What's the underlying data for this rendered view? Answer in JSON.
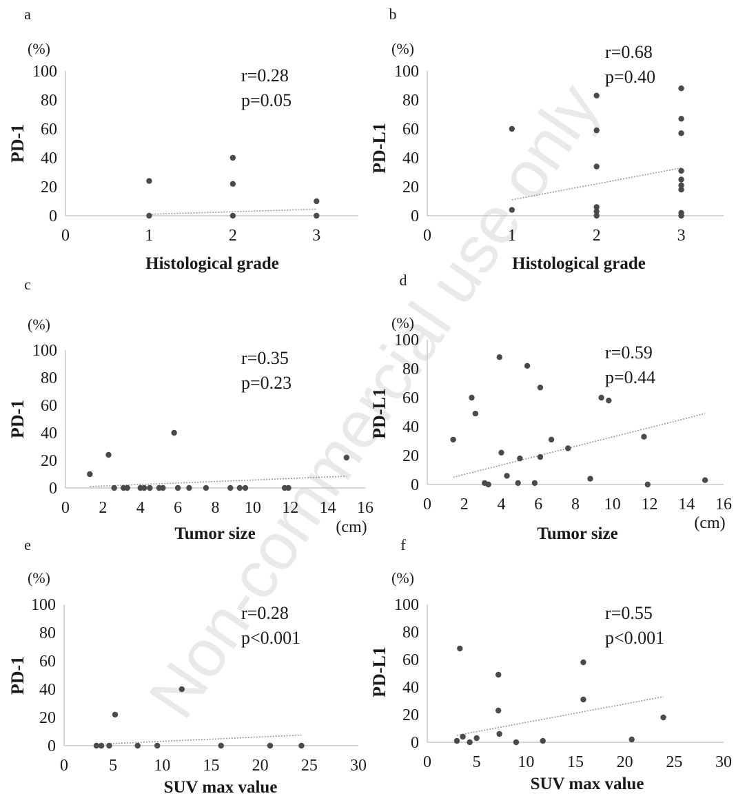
{
  "watermark": "Non-commercial use only",
  "chart_data": [
    {
      "type": "scatter",
      "panel": "a",
      "y_unit": "(%)",
      "ylabel": "PD-1",
      "xlabel": "Histological grade",
      "x_unit": "",
      "xlim": [
        0,
        3.5
      ],
      "ylim": [
        0,
        100
      ],
      "x_ticks": [
        0,
        1,
        2,
        3
      ],
      "y_ticks": [
        0,
        20,
        40,
        60,
        80,
        100
      ],
      "stats": {
        "r": "r=0.28",
        "p": "p=0.05"
      },
      "points": [
        {
          "x": 1,
          "y": 24
        },
        {
          "x": 1,
          "y": 0
        },
        {
          "x": 2,
          "y": 40
        },
        {
          "x": 2,
          "y": 22
        },
        {
          "x": 2,
          "y": 0
        },
        {
          "x": 3,
          "y": 10
        },
        {
          "x": 3,
          "y": 0
        }
      ],
      "trendline": [
        {
          "x": 1,
          "y": 1
        },
        {
          "x": 3,
          "y": 4.5
        }
      ]
    },
    {
      "type": "scatter",
      "panel": "b",
      "y_unit": "(%)",
      "ylabel": "PD-L1",
      "xlabel": "Histological grade",
      "x_unit": "",
      "xlim": [
        0,
        3.5
      ],
      "ylim": [
        0,
        100
      ],
      "x_ticks": [
        0,
        1,
        2,
        3
      ],
      "y_ticks": [
        0,
        20,
        40,
        60,
        80,
        100
      ],
      "stats": {
        "r": "r=0.68",
        "p": "p=0.40"
      },
      "points": [
        {
          "x": 1,
          "y": 60
        },
        {
          "x": 1,
          "y": 4
        },
        {
          "x": 2,
          "y": 83
        },
        {
          "x": 2,
          "y": 59
        },
        {
          "x": 2,
          "y": 34
        },
        {
          "x": 2,
          "y": 6
        },
        {
          "x": 2,
          "y": 3
        },
        {
          "x": 2,
          "y": 0
        },
        {
          "x": 3,
          "y": 88
        },
        {
          "x": 3,
          "y": 67
        },
        {
          "x": 3,
          "y": 57
        },
        {
          "x": 3,
          "y": 31
        },
        {
          "x": 3,
          "y": 25
        },
        {
          "x": 3,
          "y": 21
        },
        {
          "x": 3,
          "y": 18
        },
        {
          "x": 3,
          "y": 2
        },
        {
          "x": 3,
          "y": 0
        }
      ],
      "trendline": [
        {
          "x": 1,
          "y": 11
        },
        {
          "x": 3,
          "y": 33
        }
      ]
    },
    {
      "type": "scatter",
      "panel": "c",
      "y_unit": "(%)",
      "ylabel": "PD-1",
      "xlabel": "Tumor size",
      "x_unit": "(cm)",
      "xlim": [
        0,
        16
      ],
      "ylim": [
        0,
        100
      ],
      "x_ticks": [
        0,
        2,
        4,
        6,
        8,
        10,
        12,
        14,
        16
      ],
      "y_ticks": [
        0,
        20,
        40,
        60,
        80,
        100
      ],
      "stats": {
        "r": "r=0.35",
        "p": "p=0.23"
      },
      "points": [
        {
          "x": 1.3,
          "y": 10
        },
        {
          "x": 2.3,
          "y": 24
        },
        {
          "x": 5.8,
          "y": 40
        },
        {
          "x": 15.0,
          "y": 22
        },
        {
          "x": 2.6,
          "y": 0
        },
        {
          "x": 3.1,
          "y": 0
        },
        {
          "x": 3.3,
          "y": 0
        },
        {
          "x": 4.0,
          "y": 0
        },
        {
          "x": 4.2,
          "y": 0
        },
        {
          "x": 4.5,
          "y": 0
        },
        {
          "x": 5.0,
          "y": 0
        },
        {
          "x": 5.2,
          "y": 0
        },
        {
          "x": 6.0,
          "y": 0
        },
        {
          "x": 6.6,
          "y": 0
        },
        {
          "x": 7.5,
          "y": 0
        },
        {
          "x": 8.8,
          "y": 0
        },
        {
          "x": 9.3,
          "y": 0
        },
        {
          "x": 9.6,
          "y": 0
        },
        {
          "x": 11.7,
          "y": 0
        },
        {
          "x": 11.9,
          "y": 0
        }
      ],
      "trendline": [
        {
          "x": 1.3,
          "y": 1
        },
        {
          "x": 15.0,
          "y": 8.5
        }
      ]
    },
    {
      "type": "scatter",
      "panel": "d",
      "y_unit": "(%)",
      "ylabel": "PD-L1",
      "xlabel": "Tumor size",
      "x_unit": "(cm)",
      "xlim": [
        0,
        16
      ],
      "ylim": [
        0,
        100
      ],
      "x_ticks": [
        0,
        2,
        4,
        6,
        8,
        10,
        12,
        14,
        16
      ],
      "y_ticks": [
        0,
        20,
        40,
        60,
        80,
        100
      ],
      "stats": {
        "r": "r=0.59",
        "p": "p=0.44"
      },
      "points": [
        {
          "x": 1.4,
          "y": 31
        },
        {
          "x": 2.4,
          "y": 60
        },
        {
          "x": 2.6,
          "y": 49
        },
        {
          "x": 3.1,
          "y": 1
        },
        {
          "x": 3.3,
          "y": 0
        },
        {
          "x": 3.9,
          "y": 88
        },
        {
          "x": 4.0,
          "y": 22
        },
        {
          "x": 4.3,
          "y": 6
        },
        {
          "x": 4.9,
          "y": 1
        },
        {
          "x": 5.0,
          "y": 18
        },
        {
          "x": 5.4,
          "y": 82
        },
        {
          "x": 5.8,
          "y": 1
        },
        {
          "x": 6.1,
          "y": 67
        },
        {
          "x": 6.1,
          "y": 19
        },
        {
          "x": 6.7,
          "y": 31
        },
        {
          "x": 7.6,
          "y": 25
        },
        {
          "x": 8.8,
          "y": 4
        },
        {
          "x": 9.4,
          "y": 60
        },
        {
          "x": 9.8,
          "y": 58
        },
        {
          "x": 11.7,
          "y": 33
        },
        {
          "x": 11.9,
          "y": 0
        },
        {
          "x": 15.0,
          "y": 3
        }
      ],
      "trendline": [
        {
          "x": 1.4,
          "y": 5
        },
        {
          "x": 15.0,
          "y": 49
        }
      ]
    },
    {
      "type": "scatter",
      "panel": "e",
      "y_unit": "(%)",
      "ylabel": "PD-1",
      "xlabel": "SUV max value",
      "x_unit": "",
      "xlim": [
        0,
        30
      ],
      "ylim": [
        0,
        100
      ],
      "x_ticks": [
        0,
        5,
        10,
        15,
        20,
        25,
        30
      ],
      "y_ticks": [
        0,
        20,
        40,
        60,
        80,
        100
      ],
      "stats": {
        "r": "r=0.28",
        "p": "p<0.001"
      },
      "points": [
        {
          "x": 5.2,
          "y": 22
        },
        {
          "x": 12.0,
          "y": 40
        },
        {
          "x": 3.3,
          "y": 0
        },
        {
          "x": 3.8,
          "y": 0
        },
        {
          "x": 4.6,
          "y": 0
        },
        {
          "x": 7.5,
          "y": 0
        },
        {
          "x": 9.5,
          "y": 0
        },
        {
          "x": 16.0,
          "y": 0
        },
        {
          "x": 21.0,
          "y": 0
        },
        {
          "x": 24.2,
          "y": 0
        }
      ],
      "trendline": [
        {
          "x": 3.3,
          "y": 1
        },
        {
          "x": 24.2,
          "y": 7.5
        }
      ]
    },
    {
      "type": "scatter",
      "panel": "f",
      "y_unit": "(%)",
      "ylabel": "PD-L1",
      "xlabel": "SUV max value",
      "x_unit": "",
      "xlim": [
        0,
        30
      ],
      "ylim": [
        0,
        100
      ],
      "x_ticks": [
        0,
        5,
        10,
        15,
        20,
        25,
        30
      ],
      "y_ticks": [
        0,
        20,
        40,
        60,
        80,
        100
      ],
      "stats": {
        "r": "r=0.55",
        "p": "p<0.001"
      },
      "points": [
        {
          "x": 3.0,
          "y": 1
        },
        {
          "x": 3.3,
          "y": 68
        },
        {
          "x": 3.6,
          "y": 4
        },
        {
          "x": 4.3,
          "y": 0
        },
        {
          "x": 5.0,
          "y": 3
        },
        {
          "x": 7.2,
          "y": 49
        },
        {
          "x": 7.2,
          "y": 23
        },
        {
          "x": 7.3,
          "y": 6
        },
        {
          "x": 9.0,
          "y": 0
        },
        {
          "x": 11.7,
          "y": 1
        },
        {
          "x": 15.8,
          "y": 58
        },
        {
          "x": 15.8,
          "y": 31
        },
        {
          "x": 20.7,
          "y": 2
        },
        {
          "x": 23.9,
          "y": 18
        }
      ],
      "trendline": [
        {
          "x": 3.0,
          "y": 5
        },
        {
          "x": 23.9,
          "y": 33
        }
      ]
    }
  ]
}
